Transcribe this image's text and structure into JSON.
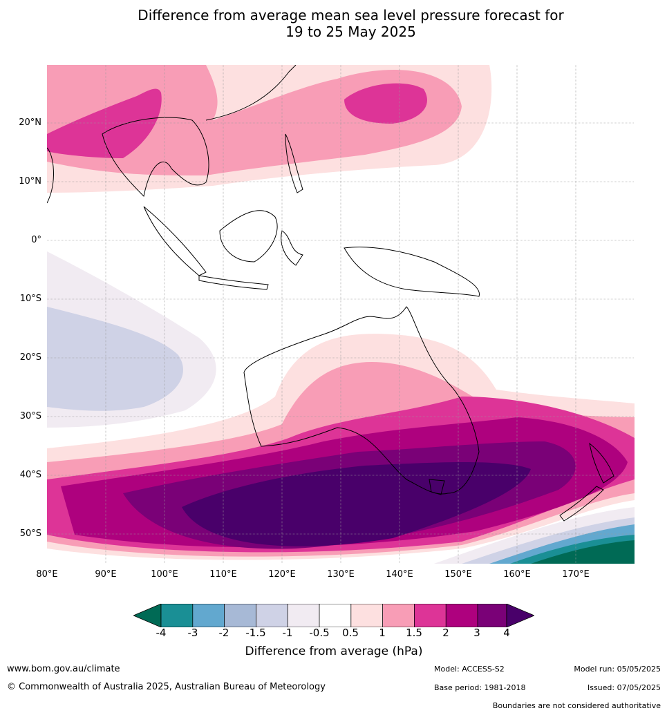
{
  "title_line1": "Difference from average mean sea level pressure forecast for",
  "title_line2": "19 to 25 May 2025",
  "lat_labels": [
    "20°N",
    "10°N",
    "0°",
    "10°S",
    "20°S",
    "30°S",
    "40°S",
    "50°S"
  ],
  "lon_labels": [
    "80°E",
    "90°E",
    "100°E",
    "110°E",
    "120°E",
    "130°E",
    "140°E",
    "150°E",
    "160°E",
    "170°E"
  ],
  "colorbar": {
    "ticks": [
      "-4",
      "-3",
      "-2",
      "-1.5",
      "-1",
      "-0.5",
      "0.5",
      "1",
      "1.5",
      "2",
      "3",
      "4"
    ],
    "colors": [
      "#006a55",
      "#1a8f95",
      "#62a8cf",
      "#a7b9d6",
      "#cfd2e6",
      "#f1ebf2",
      "#ffffff",
      "#fde0e0",
      "#f89db6",
      "#dd3497",
      "#ae017e",
      "#7a0177",
      "#49006a"
    ],
    "label": "Difference from average (hPa)"
  },
  "footer": {
    "website": "www.bom.gov.au/climate",
    "copyright": "© Commonwealth of Australia 2025, Australian Bureau of Meteorology",
    "model": "Model: ACCESS-S2",
    "base_period": "Base period: 1981-2018",
    "model_run": "Model run: 05/05/2025",
    "issued": "Issued: 07/05/2025",
    "boundaries": "Boundaries are not considered authoritative"
  }
}
